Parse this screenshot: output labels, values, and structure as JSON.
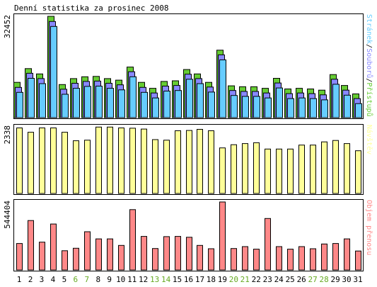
{
  "chart_data": {
    "type": "bar",
    "title": "Denní statistika za prosinec 2008",
    "categories": [
      "1",
      "2",
      "3",
      "4",
      "5",
      "6",
      "7",
      "8",
      "9",
      "10",
      "11",
      "12",
      "13",
      "14",
      "15",
      "16",
      "17",
      "18",
      "19",
      "20",
      "21",
      "22",
      "23",
      "24",
      "25",
      "26",
      "27",
      "28",
      "29",
      "30",
      "31"
    ],
    "weekend_days": [
      "6",
      "7",
      "13",
      "14",
      "20",
      "21",
      "27",
      "28"
    ],
    "panels": [
      {
        "id": "hits",
        "ymax_label": "32452",
        "ymax": 32452,
        "legend": [
          {
            "text": "Stránek",
            "color": "#66ccff"
          },
          {
            "text": "Souborů",
            "color": "#8888ff"
          },
          {
            "text": "Přístupů",
            "color": "#66cc33"
          }
        ],
        "series": [
          {
            "name": "Přístupů",
            "color": "#66cc33",
            "values": [
              11300,
              15700,
              14000,
              32452,
              10600,
              12500,
              13100,
              13200,
              12500,
              12000,
              16200,
              11300,
              9400,
              11600,
              11800,
              15400,
              14000,
              11300,
              21600,
              10200,
              9900,
              9900,
              9400,
              12600,
              9200,
              9400,
              9200,
              8800,
              13800,
              10300,
              7600
            ]
          },
          {
            "name": "Souborů",
            "color": "#8888ff",
            "values": [
              9700,
              14200,
              12500,
              30800,
              9100,
              11000,
              11600,
              11700,
              11000,
              10500,
              14700,
              9700,
              7900,
              10100,
              10300,
              13900,
              12500,
              9800,
              20100,
              8700,
              8400,
              8400,
              7900,
              11100,
              7700,
              7900,
              7700,
              7300,
              12300,
              8800,
              6100
            ]
          },
          {
            "name": "Stránek",
            "color": "#66ccff",
            "values": [
              8100,
              12600,
              10900,
              29200,
              7500,
              9400,
              10000,
              10100,
              9400,
              8900,
              13100,
              8100,
              6300,
              8500,
              8700,
              12300,
              10900,
              8200,
              18500,
              7100,
              6800,
              6800,
              6300,
              9500,
              6100,
              6300,
              6100,
              5700,
              10700,
              7200,
              4500
            ]
          }
        ]
      },
      {
        "id": "visits",
        "ymax_label": "2338",
        "ymax": 2338,
        "legend": [
          {
            "text": "Návštěv",
            "color": "#ffff99"
          }
        ],
        "series": [
          {
            "name": "Návštěv",
            "color": "#ffff99",
            "values": [
              2300,
              2150,
              2300,
              2300,
              2150,
              1850,
              1870,
              2330,
              2330,
              2300,
              2290,
              2260,
              1890,
              1870,
              2200,
              2210,
              2250,
              2200,
              1600,
              1710,
              1750,
              1780,
              1560,
              1560,
              1560,
              1700,
              1700,
              1810,
              1860,
              1750,
              1500
            ]
          }
        ]
      },
      {
        "id": "volume",
        "ymax_label": "544404",
        "ymax": 544404,
        "legend": [
          {
            "text": "Objem přenosu",
            "color": "#ff8888"
          }
        ],
        "series": [
          {
            "name": "Objem přenosu",
            "color": "#ff8888",
            "values": [
              212000,
              396000,
              223000,
              368000,
              154000,
              174000,
              306000,
              249000,
              249000,
              197000,
              483000,
              269000,
              172000,
              267000,
              269000,
              262000,
              197000,
              170000,
              544404,
              172000,
              187000,
              167000,
              412000,
              187000,
              167000,
              187000,
              170000,
              208000,
              212000,
              249000,
              152000
            ]
          }
        ]
      }
    ]
  }
}
